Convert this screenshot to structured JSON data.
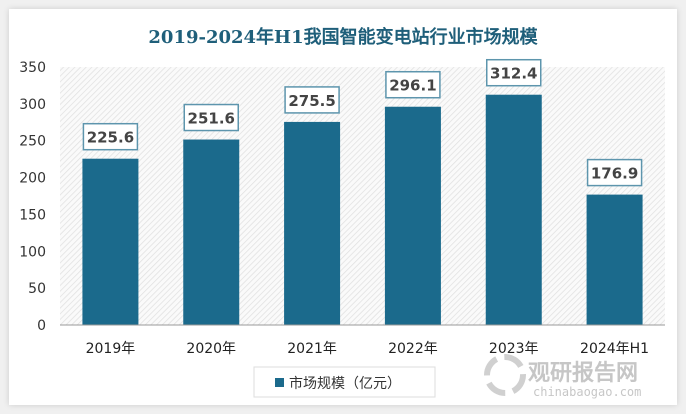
{
  "chart_data": {
    "type": "bar",
    "title": "2019-2024年H1我国智能变电站行业市场规模",
    "categories": [
      "2019年",
      "2020年",
      "2021年",
      "2022年",
      "2023年",
      "2024年H1"
    ],
    "series": [
      {
        "name": "市场规模（亿元）",
        "values": [
          225.6,
          251.6,
          275.5,
          296.1,
          312.4,
          176.9
        ]
      }
    ],
    "data_labels": [
      "225.6",
      "251.6",
      "275.5",
      "296.1",
      "312.4",
      "176.9"
    ],
    "yticks": [
      "0",
      "50",
      "100",
      "150",
      "200",
      "250",
      "300",
      "350"
    ],
    "ylim": [
      0,
      350
    ],
    "grid": false,
    "legend": "bottom",
    "colors": {
      "bar": "#1b6a8c",
      "title": "#1f5f7a",
      "label_border": "#5d95ad"
    }
  },
  "watermark": {
    "name": "观研报告网",
    "url_text": "chinabaogao.com"
  }
}
